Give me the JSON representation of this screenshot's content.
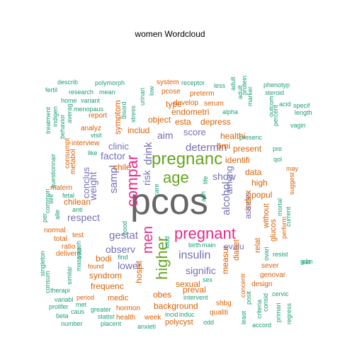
{
  "chart_data": {
    "type": "wordcloud",
    "title": "women  Wordcloud",
    "colors": {
      "c1": "#1b9e77",
      "c2": "#d95f02",
      "c3": "#7570b3",
      "c4": "#e7298a",
      "c5": "#66a61e",
      "c6": "#666666"
    },
    "words": [
      {
        "text": "pcos",
        "color": "c6",
        "weight": 10
      },
      {
        "text": "pregnanc",
        "color": "c5",
        "weight": 7
      },
      {
        "text": "pregnant",
        "color": "c4",
        "weight": 6
      },
      {
        "text": "higher",
        "color": "c5",
        "weight": 6
      },
      {
        "text": "age",
        "color": "c5",
        "weight": 6
      },
      {
        "text": "compar",
        "color": "c4",
        "weight": 6
      },
      {
        "text": "men",
        "color": "c4",
        "weight": 6
      },
      {
        "text": "insulin",
        "color": "c3",
        "weight": 5
      },
      {
        "text": "gestat",
        "color": "c3",
        "weight": 4
      },
      {
        "text": "determin",
        "color": "c3",
        "weight": 4
      },
      {
        "text": "show",
        "color": "c3",
        "weight": 4
      },
      {
        "text": "alcohol",
        "color": "c3",
        "weight": 4
      },
      {
        "text": "risk",
        "color": "c3",
        "weight": 4
      },
      {
        "text": "drink",
        "color": "c3",
        "weight": 4
      },
      {
        "text": "sampl",
        "color": "c3",
        "weight": 4
      },
      {
        "text": "respect",
        "color": "c3",
        "weight": 4
      },
      {
        "text": "signific",
        "color": "c3",
        "weight": 4
      },
      {
        "text": "clinic",
        "color": "c3",
        "weight": 4
      },
      {
        "text": "factor",
        "color": "c3",
        "weight": 4
      },
      {
        "text": "aim",
        "color": "c3",
        "weight": 4
      },
      {
        "text": "score",
        "color": "c3",
        "weight": 4
      },
      {
        "text": "lower",
        "color": "c3",
        "weight": 4
      },
      {
        "text": "among",
        "color": "c3",
        "weight": 4
      },
      {
        "text": "observ",
        "color": "c3",
        "weight": 4
      },
      {
        "text": "weight",
        "color": "c3",
        "weight": 4
      },
      {
        "text": "conclus",
        "color": "c3",
        "weight": 4
      },
      {
        "text": "assess",
        "color": "c3",
        "weight": 4
      },
      {
        "text": "evalu",
        "color": "c3",
        "weight": 3
      },
      {
        "text": "syndrom",
        "color": "c2",
        "weight": 3
      },
      {
        "text": "frequenc",
        "color": "c2",
        "weight": 3
      },
      {
        "text": "preval",
        "color": "c2",
        "weight": 3
      },
      {
        "text": "sexual",
        "color": "c2",
        "weight": 3
      },
      {
        "text": "background",
        "color": "c2",
        "weight": 3
      },
      {
        "text": "obes",
        "color": "c2",
        "weight": 3
      },
      {
        "text": "hospit",
        "color": "c2",
        "weight": 3
      },
      {
        "text": "bodi",
        "color": "c2",
        "weight": 3
      },
      {
        "text": "depress",
        "color": "c2",
        "weight": 3
      },
      {
        "text": "esta",
        "color": "c2",
        "weight": 3
      },
      {
        "text": "object",
        "color": "c2",
        "weight": 3
      },
      {
        "text": "includ",
        "color": "c2",
        "weight": 3
      },
      {
        "text": "endometri",
        "color": "c2",
        "weight": 3
      },
      {
        "text": "healthi",
        "color": "c2",
        "weight": 3
      },
      {
        "text": "bmi",
        "color": "c2",
        "weight": 3
      },
      {
        "text": "present",
        "color": "c2",
        "weight": 3
      },
      {
        "text": "identifi",
        "color": "c2",
        "weight": 3
      },
      {
        "text": "data",
        "color": "c2",
        "weight": 3
      },
      {
        "text": "high",
        "color": "c2",
        "weight": 3
      },
      {
        "text": "popul",
        "color": "c2",
        "weight": 3
      },
      {
        "text": "index",
        "color": "c2",
        "weight": 3
      },
      {
        "text": "measur",
        "color": "c2",
        "weight": 3
      },
      {
        "text": "chile",
        "color": "c2",
        "weight": 3
      },
      {
        "text": "symptom",
        "color": "c2",
        "weight": 3
      },
      {
        "text": "type",
        "color": "c2",
        "weight": 3
      },
      {
        "text": "polycyst",
        "color": "c2",
        "weight": 2
      },
      {
        "text": "medic",
        "color": "c2",
        "weight": 2
      },
      {
        "text": "diabet",
        "color": "c2",
        "weight": 2
      },
      {
        "text": "relat",
        "color": "c2",
        "weight": 2
      },
      {
        "text": "without",
        "color": "c2",
        "weight": 2
      },
      {
        "text": "glucos",
        "color": "c2",
        "weight": 2
      },
      {
        "text": "sever",
        "color": "c2",
        "weight": 2
      },
      {
        "text": "genovar",
        "color": "c2",
        "weight": 2
      },
      {
        "text": "design",
        "color": "c2",
        "weight": 2
      },
      {
        "text": "hormon",
        "color": "c2",
        "weight": 2
      },
      {
        "text": "health",
        "color": "c2",
        "weight": 2
      },
      {
        "text": "week",
        "color": "c2",
        "weight": 2
      },
      {
        "text": "qualiti",
        "color": "c2",
        "weight": 2
      },
      {
        "text": "shbg",
        "color": "c2",
        "weight": 2
      },
      {
        "text": "matern",
        "color": "c2",
        "weight": 2
      },
      {
        "text": "chilean",
        "color": "c2",
        "weight": 2
      },
      {
        "text": "test",
        "color": "c2",
        "weight": 2
      },
      {
        "text": "ratio",
        "color": "c2",
        "weight": 2
      },
      {
        "text": "total",
        "color": "c2",
        "weight": 2
      },
      {
        "text": "deliveri",
        "color": "c2",
        "weight": 2
      },
      {
        "text": "normal",
        "color": "c2",
        "weight": 2
      },
      {
        "text": "interview",
        "color": "c2",
        "weight": 2
      },
      {
        "text": "analyz",
        "color": "c2",
        "weight": 2
      },
      {
        "text": "report",
        "color": "c2",
        "weight": 2
      },
      {
        "text": "develop",
        "color": "c2",
        "weight": 2
      },
      {
        "text": "pcose",
        "color": "c2",
        "weight": 2
      },
      {
        "text": "preterm",
        "color": "c2",
        "weight": 2
      },
      {
        "text": "system",
        "color": "c2",
        "weight": 2
      },
      {
        "text": "serum",
        "color": "c2",
        "weight": 2
      },
      {
        "text": "consumpt",
        "color": "c2",
        "weight": 2
      },
      {
        "text": "metabol",
        "color": "c2",
        "weight": 2
      },
      {
        "text": "found",
        "color": "c2",
        "weight": 2
      },
      {
        "text": "period",
        "color": "c2",
        "weight": 2
      },
      {
        "text": "perform",
        "color": "c2",
        "weight": 2
      },
      {
        "text": "may",
        "color": "c2",
        "weight": 2
      },
      {
        "text": "suggest",
        "color": "c2",
        "weight": 2
      },
      {
        "text": "concentr",
        "color": "c2",
        "weight": 2
      },
      {
        "text": "research",
        "color": "c1",
        "weight": 2
      },
      {
        "text": "receptor",
        "color": "c1",
        "weight": 2
      },
      {
        "text": "alpha",
        "color": "c1",
        "weight": 2
      },
      {
        "text": "presenc",
        "color": "c1",
        "weight": 2
      },
      {
        "text": "vagin",
        "color": "c1",
        "weight": 2
      },
      {
        "text": "pre",
        "color": "c1",
        "weight": 2
      },
      {
        "text": "qol",
        "color": "c1",
        "weight": 2
      },
      {
        "text": "like",
        "color": "c1",
        "weight": 2
      },
      {
        "text": "visit",
        "color": "c1",
        "weight": 2
      },
      {
        "text": "life",
        "color": "c1",
        "weight": 2
      },
      {
        "text": "care",
        "color": "c1",
        "weight": 2
      },
      {
        "text": "adh",
        "color": "c1",
        "weight": 2
      },
      {
        "text": "birth",
        "color": "c1",
        "weight": 2
      },
      {
        "text": "main",
        "color": "c1",
        "weight": 2
      },
      {
        "text": "sex",
        "color": "c1",
        "weight": 2
      },
      {
        "text": "intervent",
        "color": "c1",
        "weight": 2
      },
      {
        "text": "incid",
        "color": "c1",
        "weight": 2
      },
      {
        "text": "induc",
        "color": "c1",
        "weight": 2
      },
      {
        "text": "anxieti",
        "color": "c1",
        "weight": 2
      },
      {
        "text": "odd",
        "color": "c1",
        "weight": 2
      },
      {
        "text": "placent",
        "color": "c1",
        "weight": 2
      },
      {
        "text": "statist",
        "color": "c1",
        "weight": 2
      },
      {
        "text": "greater",
        "color": "c1",
        "weight": 2
      },
      {
        "text": "caus",
        "color": "c1",
        "weight": 2
      },
      {
        "text": "met",
        "color": "c1",
        "weight": 2
      },
      {
        "text": "number",
        "color": "c1",
        "weight": 2
      },
      {
        "text": "beta",
        "color": "c1",
        "weight": 2
      },
      {
        "text": "prolifer",
        "color": "c1",
        "weight": 2
      },
      {
        "text": "variabl",
        "color": "c1",
        "weight": 2
      },
      {
        "text": "therapi",
        "color": "c1",
        "weight": 2
      },
      {
        "text": "singleton",
        "color": "c1",
        "weight": 2
      },
      {
        "text": "similar",
        "color": "c1",
        "weight": 2
      },
      {
        "text": "mass",
        "color": "c1",
        "weight": 2
      },
      {
        "text": "anti",
        "color": "c1",
        "weight": 2
      },
      {
        "text": "self",
        "color": "c1",
        "weight": 2
      },
      {
        "text": "fetal",
        "color": "c1",
        "weight": 2
      },
      {
        "text": "per",
        "color": "c1",
        "weight": 2
      },
      {
        "text": "common",
        "color": "c1",
        "weight": 2
      },
      {
        "text": "questionnair",
        "color": "c1",
        "weight": 2
      },
      {
        "text": "treatment",
        "color": "c1",
        "weight": 2
      },
      {
        "text": "indigen",
        "color": "c1",
        "weight": 2
      },
      {
        "text": "behavior",
        "color": "c1",
        "weight": 2
      },
      {
        "text": "averag",
        "color": "c1",
        "weight": 2
      },
      {
        "text": "home",
        "color": "c1",
        "weight": 2
      },
      {
        "text": "menopaus",
        "color": "c1",
        "weight": 2
      },
      {
        "text": "variant",
        "color": "c1",
        "weight": 2
      },
      {
        "text": "describ",
        "color": "c1",
        "weight": 2
      },
      {
        "text": "fertil",
        "color": "c1",
        "weight": 2
      },
      {
        "text": "polymorph",
        "color": "c1",
        "weight": 2
      },
      {
        "text": "mean",
        "color": "c1",
        "weight": 2
      },
      {
        "text": "urinari",
        "color": "c1",
        "weight": 2
      },
      {
        "text": "low",
        "color": "c1",
        "weight": 2
      },
      {
        "text": "stress",
        "color": "c1",
        "weight": 2
      },
      {
        "text": "disord",
        "color": "c1",
        "weight": 2
      },
      {
        "text": "less",
        "color": "c1",
        "weight": 2
      },
      {
        "text": "adult",
        "color": "c1",
        "weight": 2
      },
      {
        "text": "protein",
        "color": "c1",
        "weight": 2
      },
      {
        "text": "marker",
        "color": "c1",
        "weight": 2
      },
      {
        "text": "phenotyp",
        "color": "c1",
        "weight": 2
      },
      {
        "text": "steroid",
        "color": "c1",
        "weight": 2
      },
      {
        "text": "acid",
        "color": "c1",
        "weight": 2
      },
      {
        "text": "specif",
        "color": "c1",
        "weight": 2
      },
      {
        "text": "length",
        "color": "c1",
        "weight": 2
      },
      {
        "text": "outcom",
        "color": "c1",
        "weight": 2
      },
      {
        "text": "percent",
        "color": "c1",
        "weight": 2
      },
      {
        "text": "current",
        "color": "c1",
        "weight": 2
      },
      {
        "text": "mortal",
        "color": "c1",
        "weight": 2
      },
      {
        "text": "resist",
        "color": "c1",
        "weight": 2
      },
      {
        "text": "eat",
        "color": "c1",
        "weight": 2
      },
      {
        "text": "gdm",
        "color": "c1",
        "weight": 2
      },
      {
        "text": "adult",
        "color": "c1",
        "weight": 2
      },
      {
        "text": "food",
        "color": "c1",
        "weight": 2
      },
      {
        "text": "cervic",
        "color": "c1",
        "weight": 2
      },
      {
        "text": "regress",
        "color": "c1",
        "weight": 2
      },
      {
        "text": "primari",
        "color": "c1",
        "weight": 2
      },
      {
        "text": "accord",
        "color": "c1",
        "weight": 2
      },
      {
        "text": "consid",
        "color": "c1",
        "weight": 2
      },
      {
        "text": "criteria",
        "color": "c1",
        "weight": 2
      },
      {
        "text": "posit",
        "color": "c1",
        "weight": 2
      },
      {
        "text": "least",
        "color": "c1",
        "weight": 2
      },
      {
        "text": "ovari",
        "color": "c1",
        "weight": 2
      },
      {
        "text": "alle",
        "color": "c1",
        "weight": 2
      },
      {
        "text": "aneh",
        "color": "c1",
        "weight": 2
      },
      {
        "text": "ovul",
        "color": "c1",
        "weight": 2
      },
      {
        "text": "find",
        "color": "c1",
        "weight": 2
      },
      {
        "text": "consum",
        "color": "c1",
        "weight": 2
      },
      {
        "text": "hood",
        "color": "c1",
        "weight": 2
      }
    ]
  }
}
